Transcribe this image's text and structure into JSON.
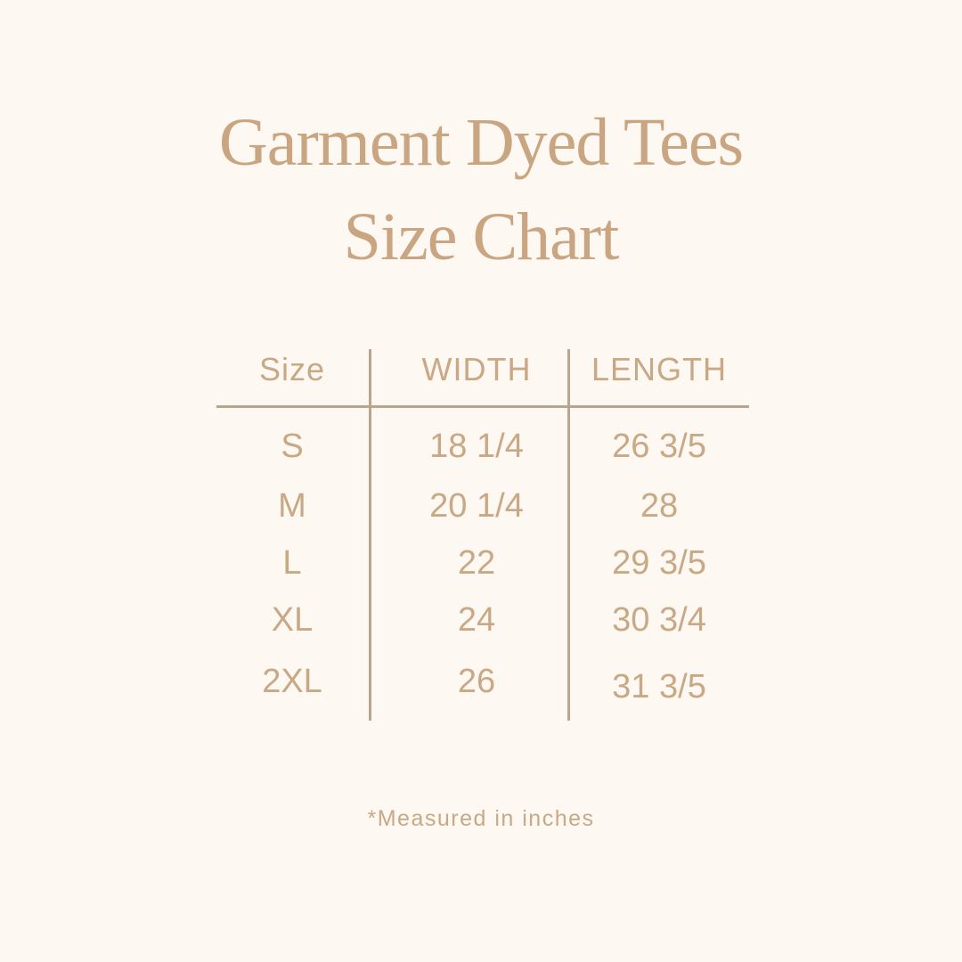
{
  "title_line1": "Garment Dyed Tees",
  "title_line2": "Size Chart",
  "footnote": "*Measured in inches",
  "colors": {
    "background": "#fdf8f1",
    "text": "#c9a885",
    "rules": "#bba48c"
  },
  "chart_data": {
    "type": "table",
    "columns": [
      "Size",
      "WIDTH",
      "LENGTH"
    ],
    "rows": [
      [
        "S",
        "18 1/4",
        "26 3/5"
      ],
      [
        "M",
        "20 1/4",
        "28"
      ],
      [
        "L",
        "22",
        "29 3/5"
      ],
      [
        "XL",
        "24",
        "30 3/4"
      ],
      [
        "2XL",
        "26",
        "31 3/5"
      ]
    ]
  }
}
